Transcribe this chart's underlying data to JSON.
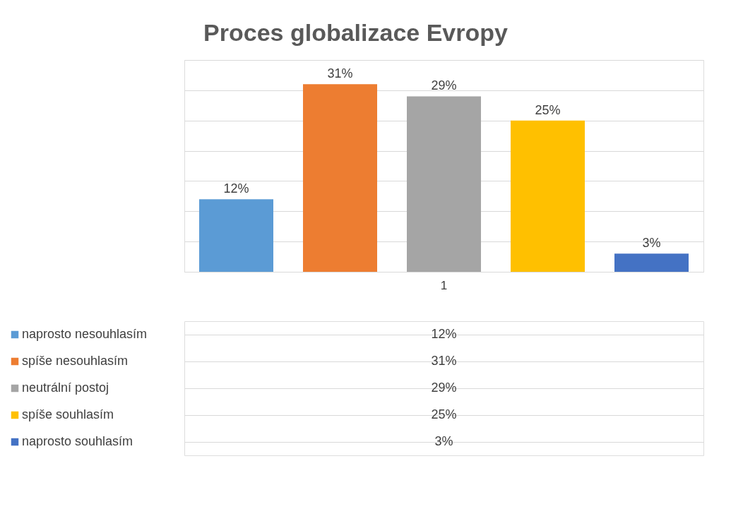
{
  "chart_data": {
    "type": "bar",
    "title": "Proces globalizace Evropy",
    "categories": [
      null,
      null,
      null,
      null,
      null
    ],
    "series": [
      {
        "name": "naprosto nesouhlasím",
        "color": "#5b9bd5",
        "values": [
          12,
          null,
          null,
          null,
          null
        ],
        "value_labels": [
          "12%",
          null,
          null,
          null,
          null
        ]
      },
      {
        "name": "spíše nesouhlasím",
        "color": "#ed7d31",
        "values": [
          null,
          31,
          null,
          null,
          null
        ],
        "value_labels": [
          null,
          "31%",
          null,
          null,
          null
        ]
      },
      {
        "name": "neutrální postoj",
        "color": "#a5a5a5",
        "values": [
          null,
          null,
          29,
          null,
          null
        ],
        "value_labels": [
          null,
          null,
          "29%",
          null,
          null
        ]
      },
      {
        "name": "spíše souhlasím",
        "color": "#ffc000",
        "values": [
          null,
          null,
          null,
          25,
          null
        ],
        "value_labels": [
          null,
          null,
          null,
          "25%",
          null
        ]
      },
      {
        "name": "naprosto souhlasím",
        "color": "#4472c4",
        "values": [
          null,
          null,
          null,
          null,
          3
        ],
        "value_labels": [
          null,
          null,
          null,
          null,
          "3%"
        ]
      }
    ],
    "annotations": [
      "1"
    ],
    "stacked": true,
    "grid": "y",
    "legend": "bottom"
  }
}
